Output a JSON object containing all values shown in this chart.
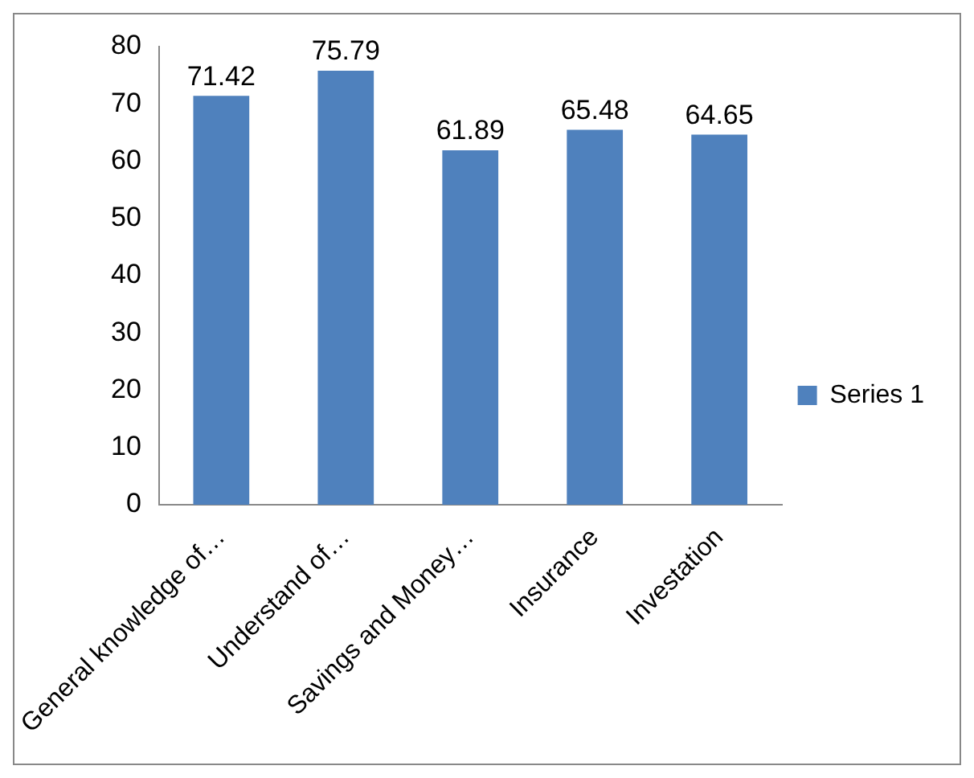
{
  "chart_data": {
    "type": "bar",
    "categories": [
      "General knowledge of…",
      "Understand of…",
      "Savings and Money…",
      "Insurance",
      "Investation"
    ],
    "series": [
      {
        "name": "Series 1",
        "color": "#4f81bd",
        "values": [
          71.42,
          75.79,
          61.89,
          65.48,
          64.65
        ]
      }
    ],
    "ylim": [
      0,
      80
    ],
    "yticks": [
      0,
      10,
      20,
      30,
      40,
      50,
      60,
      70,
      80
    ],
    "data_labels": true,
    "legend": "right"
  }
}
